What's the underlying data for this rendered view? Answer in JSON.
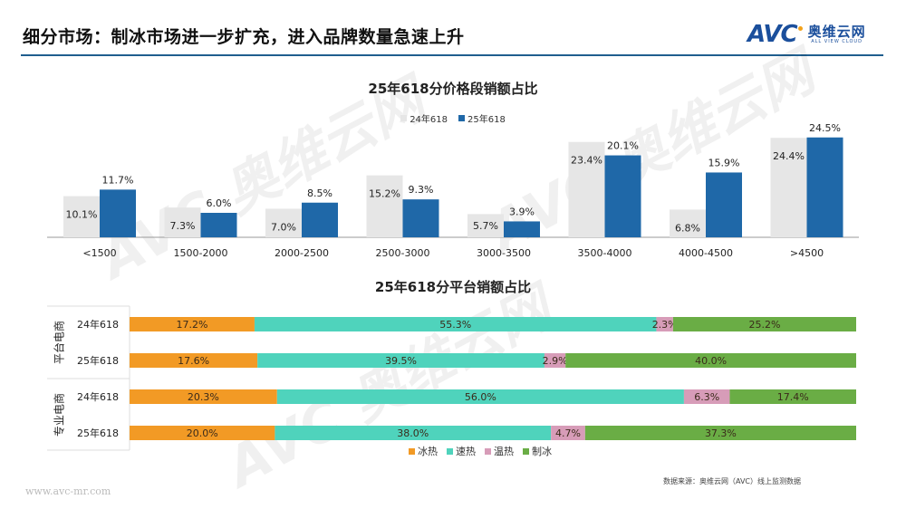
{
  "header": {
    "title": "细分市场：制冰市场进一步扩充，进入品牌数量急速上升",
    "logo_en": "AVC",
    "logo_cn": "奥维云网",
    "logo_sub": "ALL VIEW CLOUD"
  },
  "watermark_text": "AVC 奥维云网",
  "colors": {
    "accent": "#1f5e8e",
    "bar_24": "#e6e6e6",
    "bar_25": "#1f68a8",
    "seg_icehot": "#f29a25",
    "seg_fasthot": "#4fd3bc",
    "seg_warmhot": "#d79cb8",
    "seg_ice": "#6aad45"
  },
  "chart_data": [
    {
      "type": "bar",
      "title": "25年618分价格段销额占比",
      "xlabel": "",
      "ylabel": "",
      "ylim": [
        0,
        26
      ],
      "grid": false,
      "legend": "top",
      "categories": [
        "<1500",
        "1500-2000",
        "2000-2500",
        "2500-3000",
        "3000-3500",
        "3500-4000",
        "4000-4500",
        ">4500"
      ],
      "series": [
        {
          "name": "24年618",
          "values": [
            10.1,
            7.3,
            7.0,
            15.2,
            5.7,
            23.4,
            6.8,
            24.4
          ],
          "labels": [
            "10.1%",
            "7.3%",
            "7.0%",
            "15.2%",
            "5.7%",
            "23.4%",
            "6.8%",
            "24.4%"
          ]
        },
        {
          "name": "25年618",
          "values": [
            11.7,
            6.0,
            8.5,
            9.3,
            3.9,
            20.1,
            15.9,
            24.5
          ],
          "labels": [
            "11.7%",
            "6.0%",
            "8.5%",
            "9.3%",
            "3.9%",
            "20.1%",
            "15.9%",
            "24.5%"
          ]
        }
      ]
    },
    {
      "type": "bar",
      "orientation": "horizontal-stacked-100",
      "title": "25年618分平台销额占比",
      "legend": "bottom",
      "groups": [
        {
          "name": "平台电商",
          "rows": [
            "24年618",
            "25年618"
          ]
        },
        {
          "name": "专业电商",
          "rows": [
            "24年618",
            "25年618"
          ]
        }
      ],
      "series_names": [
        "冰热",
        "速热",
        "温热",
        "制冰"
      ],
      "rows": [
        {
          "group": "平台电商",
          "label": "24年618",
          "values": [
            17.2,
            55.3,
            2.3,
            25.2
          ],
          "labels": [
            "17.2%",
            "55.3%",
            "2.3%",
            "25.2%"
          ]
        },
        {
          "group": "平台电商",
          "label": "25年618",
          "values": [
            17.6,
            39.5,
            2.9,
            40.0
          ],
          "labels": [
            "17.6%",
            "39.5%",
            "2.9%",
            "40.0%"
          ]
        },
        {
          "group": "专业电商",
          "label": "24年618",
          "values": [
            20.3,
            56.0,
            6.3,
            17.4
          ],
          "labels": [
            "20.3%",
            "56.0%",
            "6.3%",
            "17.4%"
          ]
        },
        {
          "group": "专业电商",
          "label": "25年618",
          "values": [
            20.0,
            38.0,
            4.7,
            37.3
          ],
          "labels": [
            "20.0%",
            "38.0%",
            "4.7%",
            "37.3%"
          ]
        }
      ]
    }
  ],
  "legend_top": [
    {
      "name": "24年618"
    },
    {
      "name": "25年618"
    }
  ],
  "legend_bottom": [
    {
      "name": "冰热"
    },
    {
      "name": "速热"
    },
    {
      "name": "温热"
    },
    {
      "name": "制冰"
    }
  ],
  "footer": {
    "source": "数据来源：奥维云网（AVC）线上监测数据",
    "website": "www.avc-mr.com"
  }
}
